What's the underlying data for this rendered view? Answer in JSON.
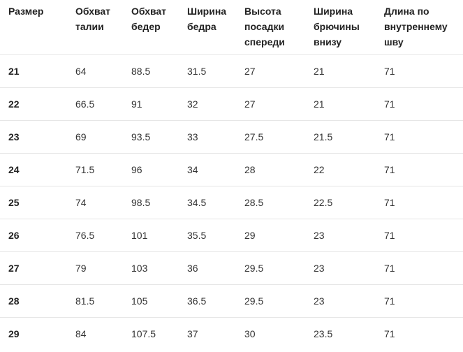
{
  "table": {
    "headers": [
      [
        "Размер"
      ],
      [
        "Обхват",
        "талии"
      ],
      [
        "Обхват",
        "бедер"
      ],
      [
        "Ширина",
        "бедра"
      ],
      [
        "Высота",
        "посадки",
        "спереди"
      ],
      [
        "Ширина",
        "брючины",
        "внизу"
      ],
      [
        "Длина по",
        "внутреннему",
        "шву"
      ]
    ],
    "rows": [
      [
        "21",
        "64",
        "88.5",
        "31.5",
        "27",
        "21",
        "71"
      ],
      [
        "22",
        "66.5",
        "91",
        "32",
        "27",
        "21",
        "71"
      ],
      [
        "23",
        "69",
        "93.5",
        "33",
        "27.5",
        "21.5",
        "71"
      ],
      [
        "24",
        "71.5",
        "96",
        "34",
        "28",
        "22",
        "71"
      ],
      [
        "25",
        "74",
        "98.5",
        "34.5",
        "28.5",
        "22.5",
        "71"
      ],
      [
        "26",
        "76.5",
        "101",
        "35.5",
        "29",
        "23",
        "71"
      ],
      [
        "27",
        "79",
        "103",
        "36",
        "29.5",
        "23",
        "71"
      ],
      [
        "28",
        "81.5",
        "105",
        "36.5",
        "29.5",
        "23",
        "71"
      ],
      [
        "29",
        "84",
        "107.5",
        "37",
        "30",
        "23.5",
        "71"
      ]
    ]
  }
}
